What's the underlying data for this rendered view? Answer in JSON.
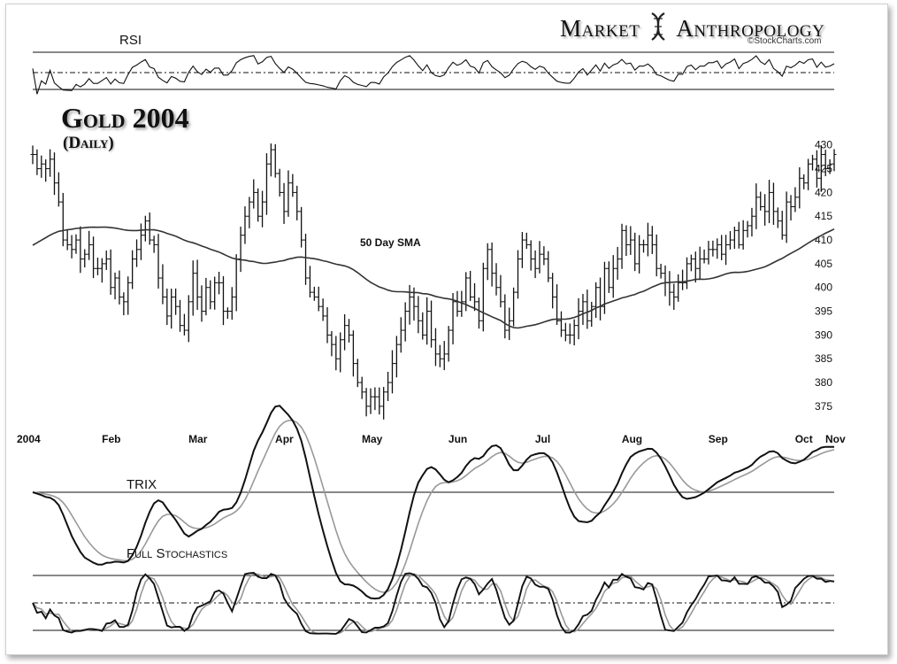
{
  "header": {
    "brand_left": "Market",
    "brand_right": "Anthropology",
    "credit": "©StockCharts.com"
  },
  "chart_data": {
    "type": "ohlc",
    "title": "Gold 2004",
    "subtitle": "(Daily)",
    "y_ticks": [
      430,
      425,
      420,
      415,
      410,
      405,
      400,
      395,
      390,
      385,
      380,
      375
    ],
    "ylim": [
      372,
      432
    ],
    "month_labels": [
      "2004",
      "Feb",
      "Mar",
      "Apr",
      "May",
      "Jun",
      "Jul",
      "Aug",
      "Sep",
      "Oct",
      "Nov"
    ],
    "month_start_index": [
      0,
      18,
      38,
      58,
      78,
      98,
      118,
      138,
      158,
      178,
      198
    ],
    "close": [
      428,
      425,
      426,
      425,
      427,
      422,
      418,
      410,
      409,
      408,
      410,
      406,
      407,
      409,
      404,
      404,
      405,
      406,
      400,
      402,
      398,
      397,
      401,
      406,
      408,
      411,
      414,
      410,
      409,
      402,
      398,
      394,
      398,
      396,
      392,
      391,
      397,
      403,
      398,
      395,
      400,
      397,
      401,
      401,
      395,
      395,
      398,
      406,
      411,
      415,
      418,
      420,
      415,
      418,
      426,
      429,
      424,
      420,
      416,
      422,
      420,
      416,
      410,
      402,
      399,
      398,
      396,
      394,
      390,
      388,
      385,
      389,
      392,
      390,
      384,
      380,
      378,
      375,
      377,
      377,
      375,
      378,
      380,
      384,
      388,
      391,
      395,
      398,
      396,
      393,
      390,
      395,
      389,
      386,
      385,
      386,
      391,
      397,
      395,
      397,
      402,
      398,
      397,
      393,
      404,
      408,
      403,
      400,
      397,
      391,
      393,
      399,
      406,
      410,
      409,
      406,
      404,
      407,
      406,
      402,
      398,
      393,
      391,
      390,
      390,
      392,
      395,
      397,
      393,
      396,
      400,
      396,
      404,
      400,
      404,
      406,
      412,
      409,
      410,
      405,
      409,
      409,
      411,
      409,
      404,
      403,
      401,
      399,
      398,
      401,
      401,
      405,
      406,
      404,
      406,
      406,
      408,
      408,
      409,
      407,
      409,
      410,
      412,
      409,
      412,
      413,
      415,
      419,
      417,
      416,
      420,
      416,
      414,
      411,
      418,
      417,
      419,
      423,
      422,
      426,
      427,
      423,
      428,
      425,
      426,
      428
    ],
    "sma_label": "50 Day SMA",
    "indicators": [
      {
        "name": "RSI",
        "lines": [
          "upper",
          "center",
          "lower"
        ]
      },
      {
        "name": "TRIX",
        "series": [
          "trix",
          "signal"
        ]
      },
      {
        "name": "Full Stochastics",
        "series": [
          "%K",
          "%D"
        ]
      }
    ]
  }
}
